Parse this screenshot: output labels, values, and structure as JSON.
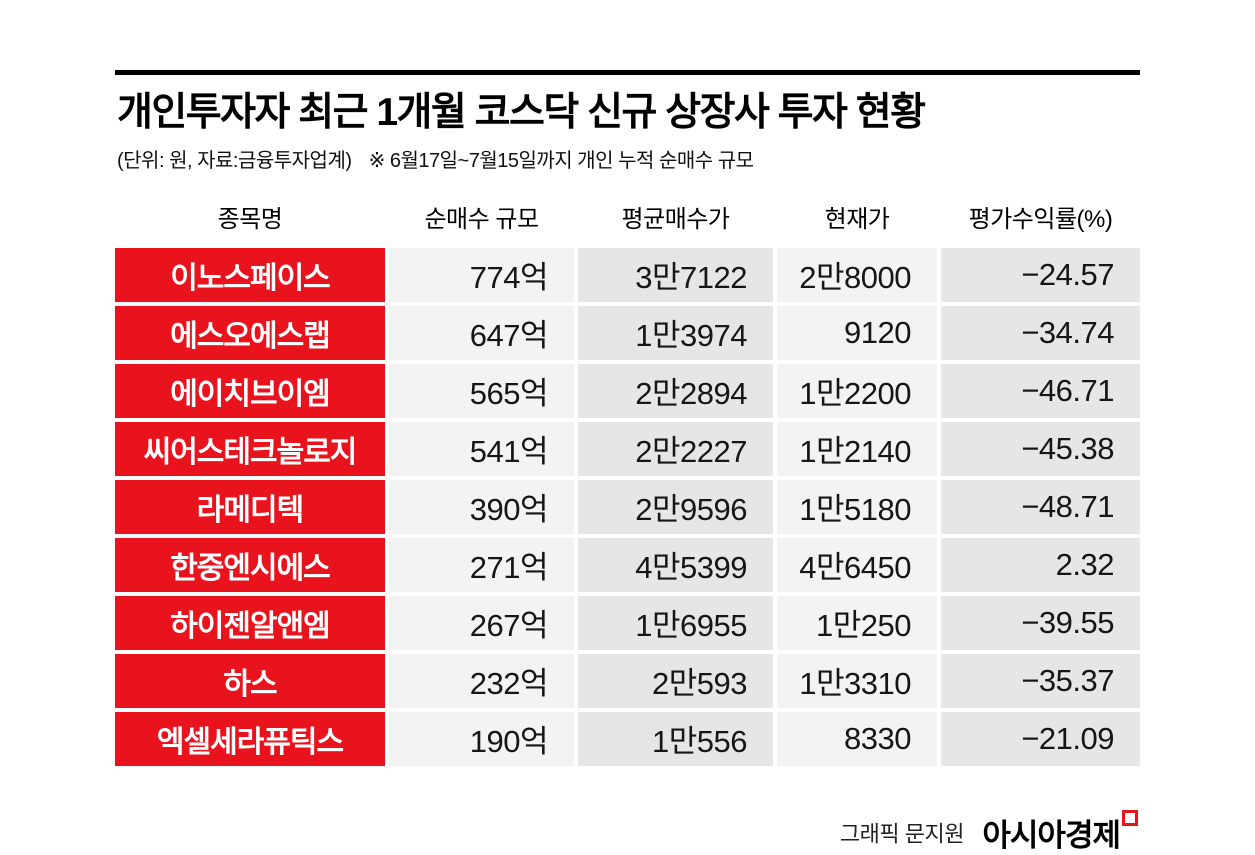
{
  "page": {
    "title": "개인투자자 최근 1개월 코스닥 신규 상장사 투자 현황",
    "unit_note": "(단위: 원, 자료:금융투자업계)",
    "period_note": "※ 6월17일~7월15일까지 개인 누적 순매수 규모",
    "credit": "그래픽 문지원",
    "brand": "아시아경제"
  },
  "colors": {
    "accent_red": "#e8131d",
    "cell_gray_light": "#f3f3f3",
    "cell_gray_dark": "#e6e6e6",
    "rule_black": "#000000"
  },
  "chart_data": {
    "type": "table",
    "title": "개인투자자 최근 1개월 코스닥 신규 상장사 투자 현황",
    "columns": [
      "종목명",
      "순매수 규모",
      "평균매수가",
      "현재가",
      "평가수익률(%)"
    ],
    "rows": [
      [
        "이노스페이스",
        "774억",
        "3만7122",
        "2만8000",
        "−24.57"
      ],
      [
        "에스오에스랩",
        "647억",
        "1만3974",
        "9120",
        "−34.74"
      ],
      [
        "에이치브이엠",
        "565억",
        "2만2894",
        "1만2200",
        "−46.71"
      ],
      [
        "씨어스테크놀로지",
        "541억",
        "2만2227",
        "1만2140",
        "−45.38"
      ],
      [
        "라메디텍",
        "390억",
        "2만9596",
        "1만5180",
        "−48.71"
      ],
      [
        "한중엔시에스",
        "271억",
        "4만5399",
        "4만6450",
        "2.32"
      ],
      [
        "하이젠알앤엠",
        "267억",
        "1만6955",
        "1만250",
        "−39.55"
      ],
      [
        "하스",
        "232억",
        "2만593",
        "1만3310",
        "−35.37"
      ],
      [
        "엑셀세라퓨틱스",
        "190억",
        "1만556",
        "8330",
        "−21.09"
      ]
    ]
  }
}
